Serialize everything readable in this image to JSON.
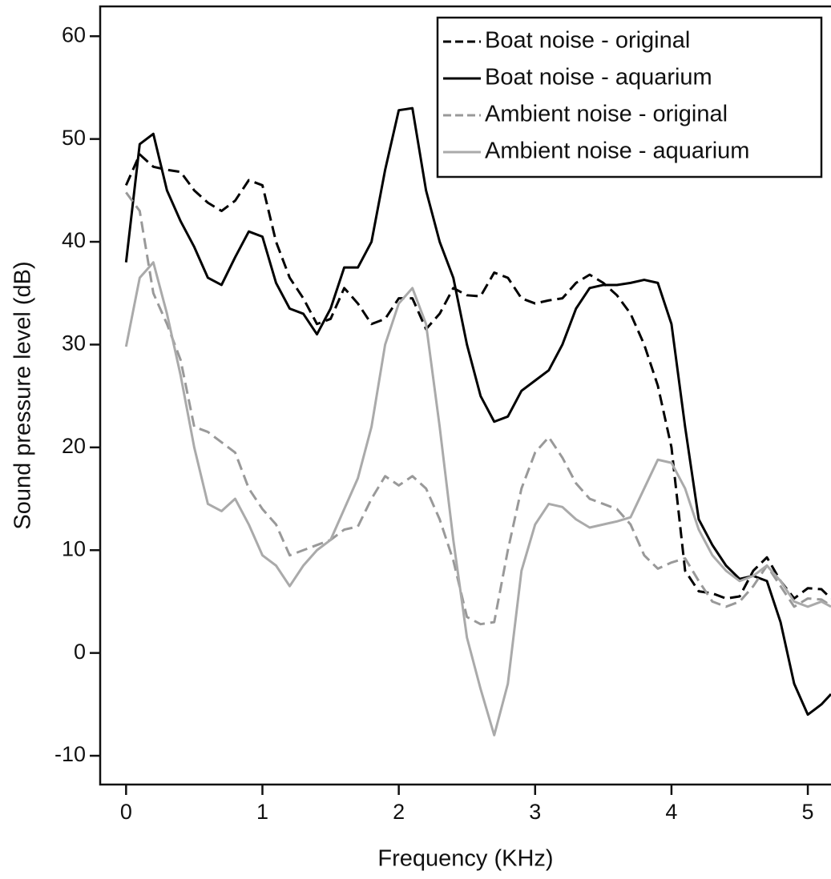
{
  "chart_data": {
    "type": "line",
    "xlabel": "Frequency (KHz)",
    "ylabel": "Sound pressure level (dB)",
    "x": [
      0,
      0.1,
      0.2,
      0.3,
      0.4,
      0.5,
      0.6,
      0.7,
      0.8,
      0.9,
      1.0,
      1.1,
      1.2,
      1.3,
      1.4,
      1.5,
      1.6,
      1.7,
      1.8,
      1.9,
      2.0,
      2.1,
      2.2,
      2.3,
      2.4,
      2.5,
      2.6,
      2.7,
      2.8,
      2.9,
      3.0,
      3.1,
      3.2,
      3.3,
      3.4,
      3.5,
      3.6,
      3.7,
      3.8,
      3.9,
      4.0,
      4.1,
      4.2,
      4.3,
      4.4,
      4.5,
      4.6,
      4.7,
      4.8,
      4.9,
      5.0,
      5.1,
      5.17
    ],
    "series": [
      {
        "name": "Boat noise - original",
        "color": "#000000",
        "style": "dashed",
        "values": [
          45.5,
          48.5,
          47.3,
          47.0,
          46.8,
          45,
          43.8,
          43,
          44,
          46,
          45.5,
          40,
          36.5,
          34.5,
          32,
          32.5,
          35.5,
          34,
          32,
          32.5,
          34.5,
          34.5,
          31.5,
          33,
          35.5,
          34.8,
          34.7,
          37,
          36.5,
          34.5,
          34,
          34.3,
          34.5,
          36,
          36.8,
          36,
          34.8,
          33,
          30,
          26,
          20,
          8,
          6,
          5.8,
          5.3,
          5.5,
          8,
          9.3,
          7,
          5.3,
          6.3,
          6.2,
          5.3
        ]
      },
      {
        "name": "Boat noise - aquarium",
        "color": "#000000",
        "style": "solid",
        "values": [
          38,
          49.5,
          50.5,
          45,
          42,
          39.5,
          36.5,
          35.8,
          38.5,
          41,
          40.5,
          36,
          33.5,
          33,
          31,
          33.5,
          37.5,
          37.5,
          40,
          47,
          52.8,
          53,
          45,
          40,
          36.5,
          30,
          25,
          22.5,
          23,
          25.5,
          26.5,
          27.5,
          30,
          33.5,
          35.5,
          35.8,
          35.8,
          36,
          36.3,
          36,
          32,
          22,
          13,
          10.5,
          8.5,
          7.2,
          7.5,
          7,
          3,
          -3,
          -6,
          -5,
          -4
        ]
      },
      {
        "name": "Ambient noise - original",
        "color": "#999999",
        "style": "dashed",
        "values": [
          44.8,
          43,
          35,
          32,
          28.5,
          22,
          21.5,
          20.5,
          19.5,
          16,
          14,
          12.5,
          9.5,
          10,
          10.5,
          11,
          12,
          12.3,
          15,
          17.2,
          16.3,
          17.2,
          16,
          13,
          9,
          3.5,
          2.8,
          3,
          10,
          16,
          19.5,
          21,
          19,
          16.5,
          15,
          14.5,
          14,
          12.5,
          9.5,
          8.2,
          8.8,
          9.2,
          7,
          5,
          4.5,
          5,
          6.5,
          8.5,
          6.5,
          4.5,
          5.3,
          5.2,
          4.6
        ]
      },
      {
        "name": "Ambient noise - aquarium",
        "color": "#aaaaaa",
        "style": "solid",
        "values": [
          29.8,
          36.5,
          38,
          33,
          27,
          20,
          14.5,
          13.8,
          15,
          12.5,
          9.5,
          8.5,
          6.5,
          8.5,
          10,
          11,
          14,
          17,
          22,
          30,
          34,
          35.5,
          32,
          22,
          11,
          1.5,
          -3.5,
          -8,
          -3,
          8,
          12.5,
          14.5,
          14.2,
          13,
          12.2,
          12.5,
          12.8,
          13.2,
          16,
          18.8,
          18.5,
          16,
          12,
          9.5,
          8,
          7,
          7.5,
          8.5,
          7,
          5,
          4.5,
          5,
          4.5
        ]
      }
    ],
    "xlim": [
      -0.19,
      5.17
    ],
    "xticks": [
      0,
      1,
      2,
      3,
      4,
      5
    ],
    "ylim": [
      -12.8,
      62.9
    ],
    "yticks": [
      -10,
      0,
      10,
      20,
      30,
      40,
      50,
      60
    ],
    "grid": false,
    "legend": "upper right"
  }
}
